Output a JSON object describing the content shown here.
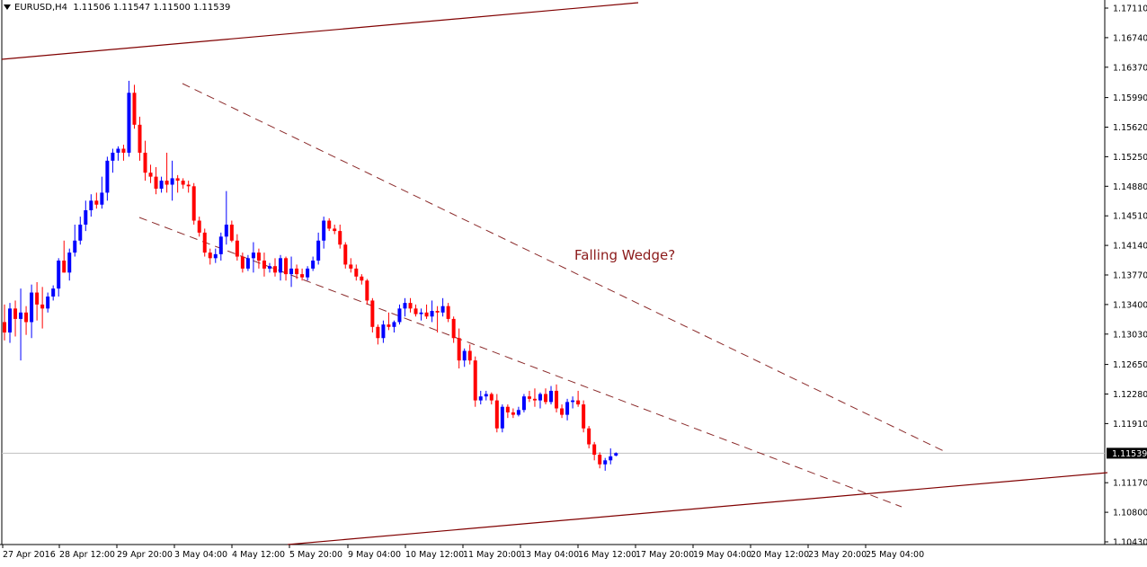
{
  "header": {
    "symbol": "EURUSD,H4",
    "open": "1.11506",
    "high": "1.11547",
    "low": "1.11500",
    "close": "1.11539"
  },
  "annotation": "Falling Wedge?",
  "current_price_label": "1.11539",
  "colors": {
    "bull": "#0000ff",
    "bear": "#ff0000",
    "trendline": "#800000",
    "wedge": "#8b2a2a",
    "annotation": "#8b1a1a",
    "axis": "#000000"
  },
  "chart_data": {
    "type": "candlestick",
    "yaxis_ticks": [
      "1.17110",
      "1.16740",
      "1.16370",
      "1.15990",
      "1.15620",
      "1.15250",
      "1.14880",
      "1.14510",
      "1.14140",
      "1.13770",
      "1.13400",
      "1.13030",
      "1.12650",
      "1.12280",
      "1.11910",
      "1.11170",
      "1.10800",
      "1.10430"
    ],
    "ylim": [
      1.1043,
      1.1711
    ],
    "xaxis_ticks": [
      "27 Apr 2016",
      "28 Apr 12:00",
      "29 Apr 20:00",
      "3 May 04:00",
      "4 May 12:00",
      "5 May 20:00",
      "9 May 04:00",
      "10 May 12:00",
      "11 May 20:00",
      "13 May 04:00",
      "16 May 12:00",
      "17 May 20:00",
      "19 May 04:00",
      "20 May 12:00",
      "23 May 20:00",
      "25 May 04:00"
    ],
    "last_price": 1.11539,
    "candles": [
      [
        1.1318,
        1.134,
        1.1295,
        1.1305
      ],
      [
        1.1305,
        1.1342,
        1.1292,
        1.1335
      ],
      [
        1.1335,
        1.1345,
        1.13,
        1.1322
      ],
      [
        1.1322,
        1.136,
        1.127,
        1.133
      ],
      [
        1.133,
        1.1338,
        1.1302,
        1.1318
      ],
      [
        1.1318,
        1.1365,
        1.1298,
        1.1355
      ],
      [
        1.1355,
        1.1368,
        1.132,
        1.134
      ],
      [
        1.134,
        1.1362,
        1.131,
        1.1335
      ],
      [
        1.1335,
        1.1355,
        1.133,
        1.135
      ],
      [
        1.135,
        1.1364,
        1.1345,
        1.136
      ],
      [
        1.136,
        1.1398,
        1.135,
        1.1395
      ],
      [
        1.1395,
        1.142,
        1.138,
        1.138
      ],
      [
        1.138,
        1.141,
        1.137,
        1.1405
      ],
      [
        1.1405,
        1.144,
        1.14,
        1.142
      ],
      [
        1.142,
        1.145,
        1.1415,
        1.144
      ],
      [
        1.144,
        1.147,
        1.1432,
        1.1458
      ],
      [
        1.1458,
        1.1478,
        1.145,
        1.147
      ],
      [
        1.147,
        1.148,
        1.146,
        1.1465
      ],
      [
        1.1465,
        1.15,
        1.146,
        1.148
      ],
      [
        1.148,
        1.1525,
        1.147,
        1.152
      ],
      [
        1.152,
        1.1535,
        1.1505,
        1.153
      ],
      [
        1.153,
        1.1538,
        1.152,
        1.1535
      ],
      [
        1.1535,
        1.154,
        1.152,
        1.153
      ],
      [
        1.153,
        1.162,
        1.1525,
        1.1605
      ],
      [
        1.1605,
        1.1615,
        1.156,
        1.1565
      ],
      [
        1.1565,
        1.1575,
        1.152,
        1.153
      ],
      [
        1.153,
        1.1545,
        1.1495,
        1.1505
      ],
      [
        1.1505,
        1.1515,
        1.1492,
        1.15
      ],
      [
        1.15,
        1.1512,
        1.1478,
        1.1485
      ],
      [
        1.1485,
        1.15,
        1.148,
        1.1495
      ],
      [
        1.1495,
        1.153,
        1.148,
        1.149
      ],
      [
        1.149,
        1.152,
        1.147,
        1.1498
      ],
      [
        1.1498,
        1.1502,
        1.148,
        1.1495
      ],
      [
        1.1495,
        1.1498,
        1.1485,
        1.149
      ],
      [
        1.149,
        1.1495,
        1.148,
        1.1488
      ],
      [
        1.1488,
        1.1492,
        1.144,
        1.1445
      ],
      [
        1.1445,
        1.145,
        1.1425,
        1.143
      ],
      [
        1.143,
        1.1435,
        1.14,
        1.1405
      ],
      [
        1.1405,
        1.141,
        1.139,
        1.1398
      ],
      [
        1.1398,
        1.141,
        1.1392,
        1.1403
      ],
      [
        1.1403,
        1.143,
        1.1395,
        1.1425
      ],
      [
        1.1425,
        1.1482,
        1.1415,
        1.144
      ],
      [
        1.144,
        1.1445,
        1.1418,
        1.142
      ],
      [
        1.142,
        1.1428,
        1.1395,
        1.14
      ],
      [
        1.14,
        1.1405,
        1.138,
        1.1385
      ],
      [
        1.1385,
        1.1402,
        1.1382,
        1.1398
      ],
      [
        1.1398,
        1.1418,
        1.138,
        1.1405
      ],
      [
        1.1405,
        1.141,
        1.1385,
        1.1395
      ],
      [
        1.1395,
        1.1405,
        1.1375,
        1.1385
      ],
      [
        1.1385,
        1.1392,
        1.138,
        1.1388
      ],
      [
        1.1388,
        1.1398,
        1.1375,
        1.138
      ],
      [
        1.138,
        1.1402,
        1.137,
        1.1398
      ],
      [
        1.1398,
        1.14,
        1.137,
        1.1378
      ],
      [
        1.1378,
        1.14,
        1.1362,
        1.1385
      ],
      [
        1.1385,
        1.139,
        1.1372,
        1.1378
      ],
      [
        1.1378,
        1.1385,
        1.137,
        1.1374
      ],
      [
        1.1374,
        1.1388,
        1.137,
        1.1385
      ],
      [
        1.1385,
        1.14,
        1.1382,
        1.1395
      ],
      [
        1.1395,
        1.143,
        1.139,
        1.142
      ],
      [
        1.142,
        1.145,
        1.141,
        1.1445
      ],
      [
        1.1445,
        1.1448,
        1.1432,
        1.1435
      ],
      [
        1.1435,
        1.144,
        1.1428,
        1.1432
      ],
      [
        1.1432,
        1.144,
        1.141,
        1.1415
      ],
      [
        1.1415,
        1.1418,
        1.1385,
        1.139
      ],
      [
        1.139,
        1.1398,
        1.138,
        1.1385
      ],
      [
        1.1385,
        1.139,
        1.137,
        1.1375
      ],
      [
        1.1375,
        1.1378,
        1.1365,
        1.137
      ],
      [
        1.137,
        1.1372,
        1.134,
        1.1345
      ],
      [
        1.1345,
        1.1348,
        1.1305,
        1.1312
      ],
      [
        1.1312,
        1.1315,
        1.129,
        1.1298
      ],
      [
        1.1298,
        1.132,
        1.1292,
        1.1315
      ],
      [
        1.1315,
        1.133,
        1.1308,
        1.1312
      ],
      [
        1.1312,
        1.132,
        1.1305,
        1.1318
      ],
      [
        1.1318,
        1.134,
        1.1315,
        1.1335
      ],
      [
        1.1335,
        1.1348,
        1.1325,
        1.1342
      ],
      [
        1.1342,
        1.1348,
        1.133,
        1.1335
      ],
      [
        1.1335,
        1.134,
        1.1325,
        1.1328
      ],
      [
        1.1328,
        1.1335,
        1.132,
        1.133
      ],
      [
        1.133,
        1.134,
        1.1322,
        1.1325
      ],
      [
        1.1325,
        1.1345,
        1.1318,
        1.1332
      ],
      [
        1.1332,
        1.1338,
        1.1305,
        1.133
      ],
      [
        1.133,
        1.1348,
        1.1325,
        1.1338
      ],
      [
        1.1338,
        1.1342,
        1.1318,
        1.1322
      ],
      [
        1.1322,
        1.1325,
        1.1292,
        1.1298
      ],
      [
        1.1298,
        1.131,
        1.126,
        1.127
      ],
      [
        1.127,
        1.1285,
        1.1262,
        1.1282
      ],
      [
        1.1282,
        1.129,
        1.1265,
        1.127
      ],
      [
        1.127,
        1.1275,
        1.1212,
        1.122
      ],
      [
        1.122,
        1.1232,
        1.1215,
        1.1225
      ],
      [
        1.1225,
        1.1232,
        1.122,
        1.1228
      ],
      [
        1.1228,
        1.123,
        1.1215,
        1.122
      ],
      [
        1.122,
        1.1228,
        1.118,
        1.1185
      ],
      [
        1.1185,
        1.1215,
        1.118,
        1.1212
      ],
      [
        1.1212,
        1.1215,
        1.1198,
        1.1205
      ],
      [
        1.1205,
        1.121,
        1.1198,
        1.1202
      ],
      [
        1.1202,
        1.1212,
        1.12,
        1.1208
      ],
      [
        1.1208,
        1.1228,
        1.1205,
        1.1225
      ],
      [
        1.1225,
        1.1232,
        1.1218,
        1.1222
      ],
      [
        1.1222,
        1.1235,
        1.1212,
        1.122
      ],
      [
        1.122,
        1.123,
        1.121,
        1.1228
      ],
      [
        1.1228,
        1.1235,
        1.1215,
        1.1218
      ],
      [
        1.1218,
        1.1238,
        1.1215,
        1.1232
      ],
      [
        1.1232,
        1.124,
        1.1205,
        1.121
      ],
      [
        1.121,
        1.1215,
        1.1198,
        1.1202
      ],
      [
        1.1202,
        1.1222,
        1.1195,
        1.1218
      ],
      [
        1.1218,
        1.1225,
        1.121,
        1.122
      ],
      [
        1.122,
        1.1232,
        1.1212,
        1.1215
      ],
      [
        1.1215,
        1.122,
        1.118,
        1.1185
      ],
      [
        1.1185,
        1.1188,
        1.116,
        1.1165
      ],
      [
        1.1165,
        1.1168,
        1.1145,
        1.1152
      ],
      [
        1.1152,
        1.1155,
        1.1135,
        1.114
      ],
      [
        1.114,
        1.1148,
        1.1132,
        1.1145
      ],
      [
        1.1145,
        1.116,
        1.114,
        1.115
      ],
      [
        1.1151,
        1.1155,
        1.115,
        1.1154
      ]
    ]
  }
}
